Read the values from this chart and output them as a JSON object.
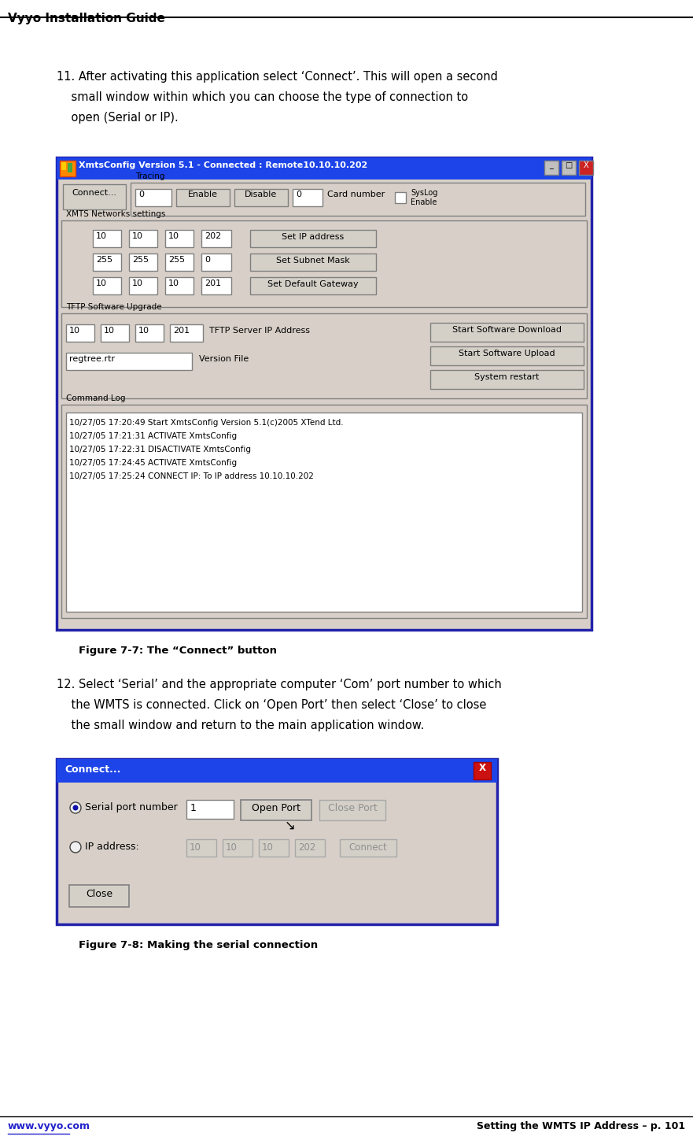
{
  "title": "Vyyo Installation Guide",
  "footer_left": "www.vyyo.com",
  "footer_right": "Setting the WMTS IP Address – p. 101",
  "para11_lines": [
    "11. After activating this application select ‘Connect’. This will open a second",
    "    small window within which you can choose the type of connection to",
    "    open (Serial or IP)."
  ],
  "fig77_caption": "Figure 7-7: The “Connect” button",
  "para12_lines": [
    "12. Select ‘Serial’ and the appropriate computer ‘Com’ port number to which",
    "    the WMTS is connected. Click on ‘Open Port’ then select ‘Close’ to close",
    "    the small window and return to the main application window."
  ],
  "fig78_caption": "Figure 7-8: Making the serial connection",
  "background_color": "#ffffff",
  "title_color": "#000000",
  "body_fontsize": 10.5,
  "caption_fontsize": 9.5,
  "footer_color_left": "#2222cc",
  "footer_color_right": "#000000",
  "win_title_color": "#1c44e8",
  "win_bg_color": "#d8d0c8",
  "win_border_color": "#2222aa",
  "win_title_text": "XmtsConfig Version 5.1 - Connected : Remote10.10.10.202",
  "connect_dialog_title": "Connect...",
  "log_lines": [
    "10/27/05 17:20:49 Start XmtsConfig Version 5.1(c)2005 XTend Ltd.",
    "10/27/05 17:21:31 ACTIVATE XmtsConfig",
    "10/27/05 17:22:31 DISACTIVATE XmtsConfig",
    "10/27/05 17:24:45 ACTIVATE XmtsConfig",
    "10/27/05 17:25:24 CONNECT IP: To IP address 10.10.10.202"
  ],
  "row_labels": [
    "Set IP address",
    "Set Subnet Mask",
    "Set Default Gateway"
  ],
  "row_values": [
    [
      "10",
      "10",
      "10",
      "202"
    ],
    [
      "255",
      "255",
      "255",
      "0"
    ],
    [
      "10",
      "10",
      "10",
      "201"
    ]
  ]
}
